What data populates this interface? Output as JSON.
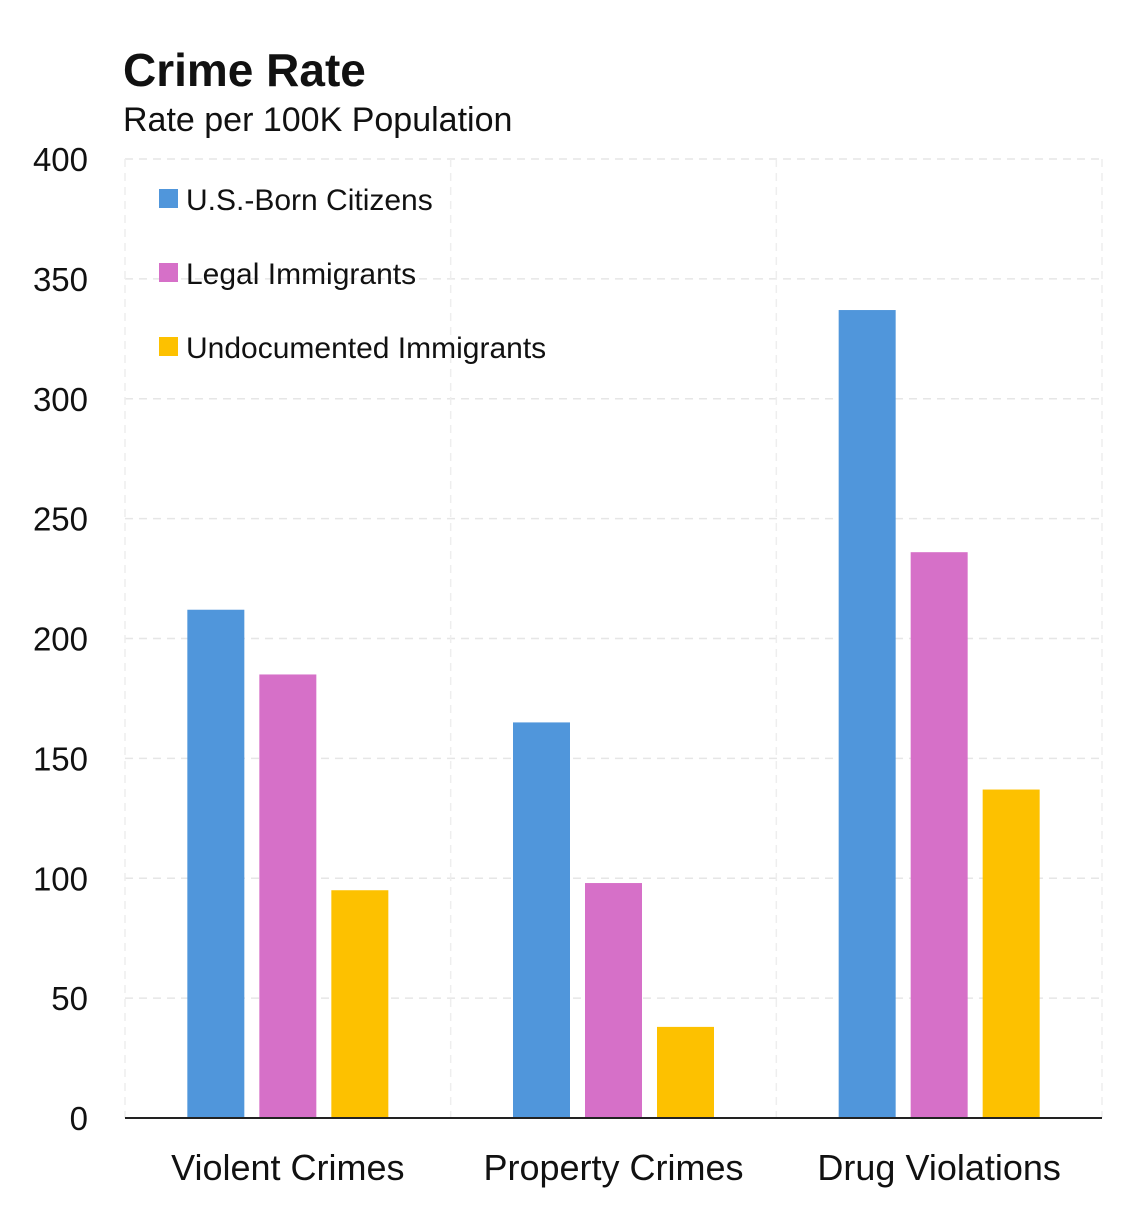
{
  "chart_data": {
    "type": "bar",
    "title": "Crime Rate",
    "subtitle": "Rate per 100K Population",
    "xlabel": "",
    "ylabel": "",
    "ylim": [
      0,
      400
    ],
    "yticks": [
      0,
      50,
      100,
      150,
      200,
      250,
      300,
      350,
      400
    ],
    "grid": true,
    "legend_position": "top-left",
    "categories": [
      "Violent Crimes",
      "Property Crimes",
      "Drug Violations"
    ],
    "series": [
      {
        "name": "U.S.-Born Citizens",
        "color": "#5096db",
        "values": [
          212,
          165,
          337
        ]
      },
      {
        "name": "Legal Immigrants",
        "color": "#d670c8",
        "values": [
          185,
          98,
          236
        ]
      },
      {
        "name": "Undocumented Immigrants",
        "color": "#fdc100",
        "values": [
          95,
          38,
          137
        ]
      }
    ]
  }
}
